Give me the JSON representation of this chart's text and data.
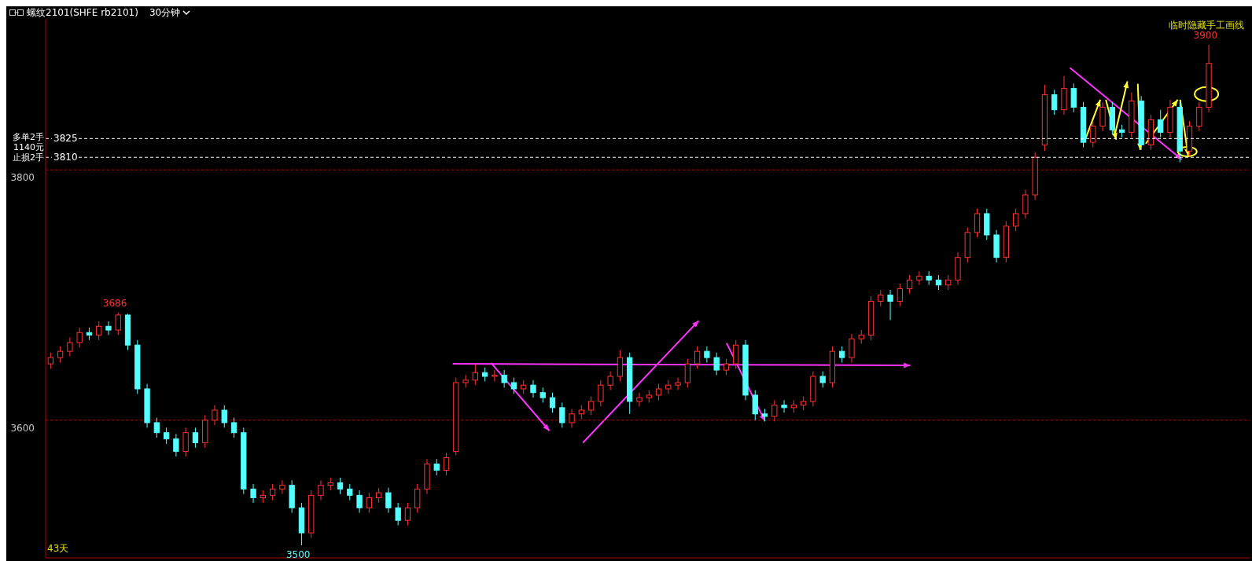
{
  "chart_data": {
    "type": "candlestick",
    "title": "螺纹2101(SHFE rb2101)",
    "subtitle": "30分钟",
    "categories": [
      null,
      null,
      null,
      null,
      null,
      null,
      null,
      null,
      null,
      null,
      null,
      null,
      null,
      null,
      null,
      null,
      null,
      null,
      null,
      null,
      null,
      null,
      null,
      null,
      null,
      null,
      null,
      null,
      null,
      null,
      null,
      null,
      null,
      null,
      null,
      null,
      null,
      null,
      null,
      null,
      null,
      null,
      null,
      null,
      null,
      null,
      null,
      null,
      null,
      null,
      null,
      null,
      null,
      null,
      null,
      null,
      null,
      null,
      null,
      null,
      null,
      null,
      null,
      null,
      null,
      null,
      null,
      null,
      null,
      null,
      null,
      null,
      null,
      null,
      null,
      null,
      null,
      null,
      null,
      null,
      null,
      null,
      null,
      null,
      null,
      null,
      null,
      null,
      null,
      null,
      null,
      null,
      null,
      null,
      null,
      null,
      null,
      null,
      null,
      null,
      null,
      null,
      null,
      null,
      null,
      null,
      null,
      null,
      null,
      null,
      null,
      null,
      null,
      null,
      null,
      null,
      null,
      null,
      null,
      null,
      null
    ],
    "ohlc": [
      [
        3645,
        3654,
        3641,
        3650
      ],
      [
        3650,
        3659,
        3646,
        3655
      ],
      [
        3655,
        3666,
        3651,
        3662
      ],
      [
        3662,
        3674,
        3658,
        3670
      ],
      [
        3670,
        3674,
        3664,
        3668
      ],
      [
        3668,
        3679,
        3664,
        3675
      ],
      [
        3675,
        3679,
        3668,
        3672
      ],
      [
        3672,
        3686,
        3668,
        3684
      ],
      [
        3684,
        3685,
        3656,
        3660
      ],
      [
        3660,
        3664,
        3621,
        3625
      ],
      [
        3625,
        3629,
        3594,
        3598
      ],
      [
        3598,
        3602,
        3586,
        3590
      ],
      [
        3590,
        3594,
        3581,
        3585
      ],
      [
        3585,
        3589,
        3571,
        3575
      ],
      [
        3575,
        3594,
        3571,
        3590
      ],
      [
        3590,
        3594,
        3578,
        3582
      ],
      [
        3582,
        3604,
        3578,
        3600
      ],
      [
        3600,
        3612,
        3596,
        3608
      ],
      [
        3608,
        3612,
        3594,
        3598
      ],
      [
        3598,
        3602,
        3586,
        3590
      ],
      [
        3590,
        3594,
        3541,
        3545
      ],
      [
        3545,
        3549,
        3534,
        3538
      ],
      [
        3538,
        3544,
        3534,
        3540
      ],
      [
        3540,
        3549,
        3536,
        3545
      ],
      [
        3545,
        3552,
        3541,
        3548
      ],
      [
        3548,
        3552,
        3526,
        3530
      ],
      [
        3530,
        3534,
        3500,
        3510
      ],
      [
        3510,
        3544,
        3506,
        3540
      ],
      [
        3540,
        3552,
        3536,
        3548
      ],
      [
        3548,
        3554,
        3544,
        3550
      ],
      [
        3550,
        3554,
        3541,
        3545
      ],
      [
        3545,
        3549,
        3536,
        3540
      ],
      [
        3540,
        3544,
        3526,
        3530
      ],
      [
        3530,
        3542,
        3526,
        3538
      ],
      [
        3538,
        3546,
        3534,
        3542
      ],
      [
        3542,
        3546,
        3526,
        3530
      ],
      [
        3530,
        3534,
        3516,
        3520
      ],
      [
        3520,
        3534,
        3516,
        3530
      ],
      [
        3530,
        3549,
        3526,
        3545
      ],
      [
        3545,
        3569,
        3541,
        3565
      ],
      [
        3565,
        3569,
        3556,
        3560
      ],
      [
        3560,
        3574,
        3556,
        3570
      ],
      [
        3575,
        3634,
        3572,
        3630
      ],
      [
        3630,
        3636,
        3626,
        3632
      ],
      [
        3632,
        3645,
        3628,
        3638
      ],
      [
        3638,
        3642,
        3631,
        3635
      ],
      [
        3635,
        3640,
        3631,
        3636
      ],
      [
        3636,
        3640,
        3626,
        3630
      ],
      [
        3630,
        3634,
        3621,
        3625
      ],
      [
        3625,
        3632,
        3621,
        3628
      ],
      [
        3628,
        3632,
        3618,
        3622
      ],
      [
        3622,
        3626,
        3614,
        3618
      ],
      [
        3618,
        3622,
        3606,
        3610
      ],
      [
        3610,
        3614,
        3594,
        3598
      ],
      [
        3598,
        3609,
        3594,
        3605
      ],
      [
        3605,
        3612,
        3601,
        3608
      ],
      [
        3608,
        3619,
        3604,
        3615
      ],
      [
        3615,
        3632,
        3611,
        3628
      ],
      [
        3628,
        3639,
        3624,
        3635
      ],
      [
        3635,
        3656,
        3631,
        3650
      ],
      [
        3650,
        3654,
        3605,
        3615
      ],
      [
        3615,
        3622,
        3611,
        3618
      ],
      [
        3618,
        3624,
        3614,
        3620
      ],
      [
        3620,
        3629,
        3616,
        3625
      ],
      [
        3625,
        3632,
        3621,
        3628
      ],
      [
        3628,
        3634,
        3624,
        3630
      ],
      [
        3630,
        3649,
        3626,
        3645
      ],
      [
        3645,
        3659,
        3641,
        3655
      ],
      [
        3655,
        3659,
        3646,
        3650
      ],
      [
        3650,
        3654,
        3636,
        3640
      ],
      [
        3640,
        3649,
        3636,
        3645
      ],
      [
        3645,
        3664,
        3641,
        3660
      ],
      [
        3660,
        3664,
        3616,
        3620
      ],
      [
        3620,
        3624,
        3600,
        3605
      ],
      [
        3605,
        3609,
        3599,
        3603
      ],
      [
        3603,
        3616,
        3599,
        3612
      ],
      [
        3612,
        3616,
        3606,
        3610
      ],
      [
        3610,
        3616,
        3606,
        3612
      ],
      [
        3612,
        3619,
        3608,
        3615
      ],
      [
        3615,
        3639,
        3611,
        3635
      ],
      [
        3635,
        3639,
        3626,
        3630
      ],
      [
        3630,
        3659,
        3626,
        3655
      ],
      [
        3655,
        3659,
        3646,
        3650
      ],
      [
        3650,
        3669,
        3646,
        3665
      ],
      [
        3665,
        3672,
        3661,
        3668
      ],
      [
        3668,
        3699,
        3664,
        3695
      ],
      [
        3695,
        3704,
        3691,
        3700
      ],
      [
        3700,
        3704,
        3680,
        3695
      ],
      [
        3695,
        3709,
        3691,
        3705
      ],
      [
        3705,
        3716,
        3701,
        3712
      ],
      [
        3712,
        3719,
        3708,
        3715
      ],
      [
        3715,
        3719,
        3708,
        3712
      ],
      [
        3712,
        3716,
        3704,
        3708
      ],
      [
        3708,
        3716,
        3704,
        3712
      ],
      [
        3712,
        3734,
        3708,
        3730
      ],
      [
        3730,
        3754,
        3726,
        3750
      ],
      [
        3750,
        3769,
        3746,
        3765
      ],
      [
        3765,
        3769,
        3744,
        3748
      ],
      [
        3748,
        3752,
        3726,
        3730
      ],
      [
        3730,
        3759,
        3726,
        3755
      ],
      [
        3755,
        3769,
        3751,
        3765
      ],
      [
        3765,
        3784,
        3761,
        3780
      ],
      [
        3780,
        3814,
        3776,
        3810
      ],
      [
        3820,
        3868,
        3815,
        3860
      ],
      [
        3860,
        3864,
        3844,
        3848
      ],
      [
        3848,
        3875,
        3844,
        3865
      ],
      [
        3865,
        3869,
        3846,
        3850
      ],
      [
        3850,
        3854,
        3818,
        3822
      ],
      [
        3822,
        3839,
        3818,
        3835
      ],
      [
        3835,
        3854,
        3831,
        3850
      ],
      [
        3850,
        3854,
        3828,
        3832
      ],
      [
        3832,
        3836,
        3826,
        3830
      ],
      [
        3830,
        3862,
        3826,
        3855
      ],
      [
        3855,
        3859,
        3816,
        3820
      ],
      [
        3820,
        3844,
        3816,
        3840
      ],
      [
        3840,
        3848,
        3826,
        3830
      ],
      [
        3830,
        3856,
        3826,
        3850
      ],
      [
        3850,
        3854,
        3806,
        3815
      ],
      [
        3815,
        3839,
        3811,
        3835
      ],
      [
        3835,
        3854,
        3831,
        3850
      ],
      [
        3850,
        3900,
        3846,
        3885
      ]
    ],
    "ylim": [
      3490,
      3920
    ],
    "yticks": [
      3600,
      3800
    ],
    "grid": "y",
    "tick_labels": "y",
    "ref_lines": [
      {
        "axis": "y",
        "value": 3825,
        "label": "3825",
        "color": "#ffffff",
        "line_style": "dashed"
      },
      {
        "axis": "y",
        "value": 3810,
        "label": "3810",
        "color": "#ffffff",
        "line_style": "dashed"
      }
    ],
    "annotations": [
      {
        "text": "3686",
        "y": 3686
      },
      {
        "text": "3500",
        "y": 3500
      },
      {
        "text": "3900",
        "y": 3900
      },
      "多单2手",
      "1140元",
      "止损2手",
      "43天",
      "临时隐藏手工画线"
    ]
  }
}
